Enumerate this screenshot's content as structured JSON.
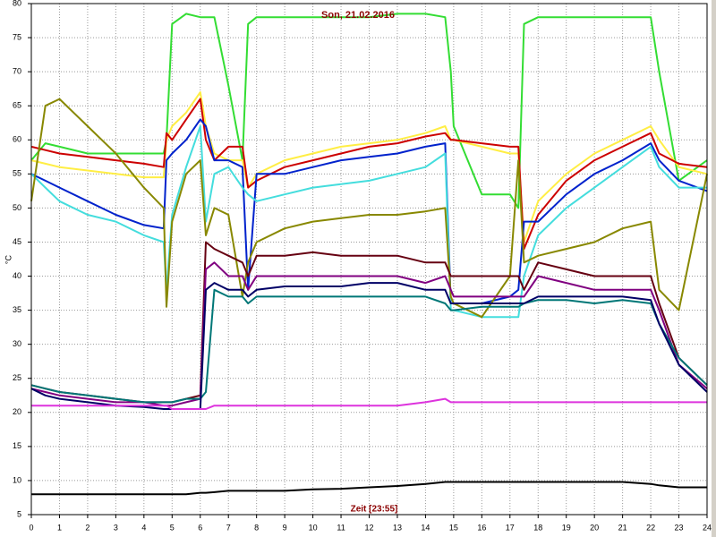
{
  "chart_data": {
    "type": "line",
    "title": "Son, 21.02.2016",
    "x_label": "Zeit [23:55]",
    "y_label": "°C",
    "x": [
      0,
      0.5,
      1,
      2,
      3,
      4,
      4.7,
      4.8,
      5,
      5.5,
      6,
      6.2,
      6.5,
      7,
      7.5,
      7.7,
      8,
      9,
      10,
      11,
      12,
      13,
      14,
      14.7,
      14.9,
      15,
      16,
      17,
      17.3,
      17.5,
      18,
      19,
      20,
      21,
      22,
      22.3,
      23,
      24
    ],
    "xlim": [
      0,
      24
    ],
    "xticks": [
      0,
      1,
      2,
      3,
      4,
      5,
      6,
      7,
      8,
      9,
      10,
      11,
      12,
      13,
      14,
      15,
      16,
      17,
      18,
      19,
      20,
      21,
      22,
      23,
      24
    ],
    "ylim": [
      5,
      80
    ],
    "yticks": [
      5,
      10,
      15,
      20,
      25,
      30,
      35,
      40,
      45,
      50,
      55,
      60,
      65,
      70,
      75,
      80
    ],
    "grid": true,
    "series": [
      {
        "color": "#33dd33",
        "values": [
          57,
          59.5,
          59,
          58,
          58,
          58,
          58,
          60,
          77,
          78.5,
          78,
          78,
          78,
          68,
          57,
          77,
          78,
          78,
          78,
          78,
          78,
          78.5,
          78.5,
          78,
          70,
          62,
          52,
          52,
          50,
          77,
          78,
          78,
          78,
          78,
          78,
          70,
          54,
          57
        ]
      },
      {
        "color": "#ffee44",
        "values": [
          57,
          56.5,
          56,
          55.5,
          55,
          54.5,
          54.5,
          60,
          62,
          64,
          67,
          62,
          58,
          57,
          57,
          53,
          55,
          57,
          58,
          59,
          59.5,
          60,
          61,
          62,
          60,
          60,
          59,
          58,
          58,
          45,
          51,
          55,
          58,
          60,
          62,
          60,
          56,
          55
        ]
      },
      {
        "color": "#cc0000",
        "values": [
          59,
          58.5,
          58,
          57.5,
          57,
          56.5,
          56,
          61,
          60,
          63,
          66,
          60,
          57,
          59,
          59,
          53,
          54,
          56,
          57,
          58,
          59,
          59.5,
          60.5,
          61,
          60,
          60,
          59.5,
          59,
          59,
          44,
          49,
          54,
          57,
          59,
          61,
          58,
          56.5,
          56
        ]
      },
      {
        "color": "#0022cc",
        "values": [
          55,
          54,
          53,
          51,
          49,
          47.5,
          47,
          57,
          58,
          60,
          63,
          62,
          57,
          57,
          56,
          38,
          55,
          55,
          56,
          57,
          57.5,
          58,
          59,
          59.5,
          36,
          36,
          36,
          37,
          38,
          48,
          48,
          52,
          55,
          57,
          59.5,
          57,
          54,
          52.5
        ]
      },
      {
        "color": "#44dddd",
        "values": [
          55,
          53,
          51,
          49,
          48,
          46,
          45,
          38,
          49,
          56,
          62,
          48,
          55,
          56,
          53,
          52,
          51,
          52,
          53,
          53.5,
          54,
          55,
          56,
          58,
          35,
          35,
          34,
          34,
          34,
          40,
          46,
          50,
          53,
          56,
          59,
          56,
          53,
          53
        ]
      },
      {
        "color": "#888800",
        "values": [
          51,
          65,
          66,
          62,
          58,
          53,
          50,
          35.5,
          48,
          55,
          57,
          46,
          50,
          49,
          37,
          42,
          45,
          47,
          48,
          48.5,
          49,
          49,
          49.5,
          50,
          37,
          36,
          34,
          40,
          57,
          42,
          43,
          44,
          45,
          47,
          48,
          38,
          35,
          55
        ]
      },
      {
        "color": "#660011",
        "values": [
          24,
          23.5,
          23,
          22.5,
          22,
          21.5,
          21.5,
          21.5,
          21.5,
          22,
          22.5,
          45,
          44,
          43,
          42,
          40,
          43,
          43,
          43.5,
          43,
          43,
          43,
          42,
          42,
          40,
          40,
          40,
          40,
          40,
          38,
          42,
          41,
          40,
          40,
          40,
          36,
          28,
          24
        ]
      },
      {
        "color": "#800080",
        "values": [
          23.5,
          23,
          22.5,
          22,
          21.5,
          21.5,
          21,
          21,
          21,
          21.5,
          22,
          41,
          42,
          40,
          40,
          38,
          40,
          40,
          40,
          40,
          40,
          40,
          39,
          40,
          38,
          37,
          37,
          37,
          37,
          37,
          40,
          39,
          38,
          38,
          38,
          35,
          27,
          23.5
        ]
      },
      {
        "color": "#007777",
        "values": [
          24,
          23.5,
          23,
          22.5,
          22,
          21.5,
          21.5,
          21.5,
          21.5,
          22,
          22,
          23,
          38,
          37,
          37,
          36,
          37,
          37,
          37,
          37,
          37,
          37,
          37,
          36,
          35,
          35,
          35.5,
          35.5,
          35.5,
          36,
          36.5,
          36.5,
          36,
          36.5,
          36,
          33,
          28,
          24
        ]
      },
      {
        "color": "#000066",
        "values": [
          23.5,
          22.5,
          22,
          21.5,
          21,
          20.8,
          20.5,
          20.5,
          20.5,
          20.5,
          20.5,
          38,
          39,
          38,
          38,
          37,
          38,
          38.5,
          38.5,
          38.5,
          39,
          39,
          38,
          38,
          36,
          36,
          36,
          36,
          36,
          36,
          37,
          37,
          37,
          37,
          36.5,
          33,
          27,
          23
        ]
      },
      {
        "color": "#dd33dd",
        "values": [
          21,
          21,
          21,
          21,
          21,
          21,
          21,
          21,
          20.5,
          20.5,
          20.5,
          20.5,
          21,
          21,
          21,
          21,
          21,
          21,
          21,
          21,
          21,
          21,
          21.5,
          22,
          21.5,
          21.5,
          21.5,
          21.5,
          21.5,
          21.5,
          21.5,
          21.5,
          21.5,
          21.5,
          21.5,
          21.5,
          21.5,
          21.5
        ]
      },
      {
        "color": "#000000",
        "values": [
          8,
          8,
          8,
          8,
          8,
          8,
          8,
          8,
          8,
          8,
          8.2,
          8.2,
          8.3,
          8.5,
          8.5,
          8.5,
          8.5,
          8.5,
          8.7,
          8.8,
          9,
          9.2,
          9.5,
          9.8,
          9.8,
          9.8,
          9.8,
          9.8,
          9.8,
          9.8,
          9.8,
          9.8,
          9.8,
          9.8,
          9.5,
          9.3,
          9,
          9
        ]
      }
    ]
  }
}
